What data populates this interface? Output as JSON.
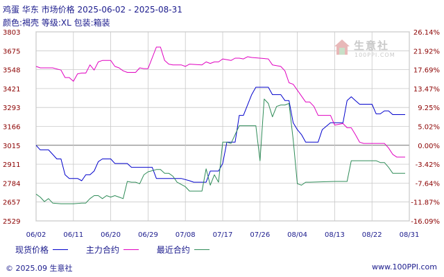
{
  "title": {
    "line1": "鸡蛋 华东 市场价格 2025-06-02 - 2025-08-31",
    "line2": "颜色:褐壳 等级:XL 包装:箱装"
  },
  "watermark": {
    "cn": "生意社",
    "en": "100PPI.COM"
  },
  "footer": {
    "left": "© 2025.09 生意社",
    "right": "www.100PPI.com"
  },
  "colors": {
    "spot": "#0000cc",
    "main": "#e000c0",
    "recent": "#2e8b57",
    "grid": "#c8c8c8",
    "zero": "#707070",
    "tick_text": "#8b0000"
  },
  "chart_data": {
    "type": "line",
    "title": "鸡蛋 华东 市场价格 2025-06-02 - 2025-08-31",
    "ylim": [
      2529,
      3803
    ],
    "y_ticks": [
      "3803",
      "3675",
      "3548",
      "3421",
      "3293",
      "3166",
      "3015",
      "2911",
      "2784",
      "2657",
      "2529"
    ],
    "y2_ticks": [
      "26.14%",
      "21.92%",
      "17.69%",
      "13.47%",
      "9.25%",
      "5.02%",
      "0.00%",
      "-3.42%",
      "-7.64%",
      "-11.87%",
      "-16.09%"
    ],
    "x_ticks": [
      "06/02",
      "06/11",
      "06/20",
      "06/29",
      "07/08",
      "07/17",
      "07/26",
      "08/04",
      "08/13",
      "08/22",
      "08/31"
    ],
    "grid": true,
    "legend_position": "bottom",
    "series": [
      {
        "name": "现货价格",
        "color": "#0000cc",
        "points": [
          [
            "06/02",
            3015
          ],
          [
            "06/03",
            2990
          ],
          [
            "06/05",
            2990
          ],
          [
            "06/06",
            2965
          ],
          [
            "06/07",
            2940
          ],
          [
            "06/08",
            2940
          ],
          [
            "06/09",
            2840
          ],
          [
            "06/10",
            2815
          ],
          [
            "06/12",
            2815
          ],
          [
            "06/13",
            2800
          ],
          [
            "06/14",
            2840
          ],
          [
            "06/15",
            2840
          ],
          [
            "06/16",
            2865
          ],
          [
            "06/17",
            2925
          ],
          [
            "06/18",
            2940
          ],
          [
            "06/20",
            2940
          ],
          [
            "06/21",
            2915
          ],
          [
            "06/24",
            2915
          ],
          [
            "06/25",
            2890
          ],
          [
            "06/30",
            2890
          ],
          [
            "07/01",
            2815
          ],
          [
            "07/07",
            2815
          ],
          [
            "07/09",
            2800
          ],
          [
            "07/10",
            2790
          ],
          [
            "07/13",
            2790
          ],
          [
            "07/14",
            2865
          ],
          [
            "07/16",
            2865
          ],
          [
            "07/17",
            2915
          ],
          [
            "07/18",
            3040
          ],
          [
            "07/20",
            3040
          ],
          [
            "07/21",
            3240
          ],
          [
            "07/22",
            3240
          ],
          [
            "07/24",
            3380
          ],
          [
            "07/25",
            3430
          ],
          [
            "07/28",
            3430
          ],
          [
            "07/29",
            3380
          ],
          [
            "07/31",
            3380
          ],
          [
            "08/01",
            3340
          ],
          [
            "08/02",
            3340
          ],
          [
            "08/03",
            3190
          ],
          [
            "08/04",
            3140
          ],
          [
            "08/05",
            3100
          ],
          [
            "08/06",
            3040
          ],
          [
            "08/07",
            3040
          ],
          [
            "08/09",
            3040
          ],
          [
            "08/10",
            3140
          ],
          [
            "08/12",
            3190
          ],
          [
            "08/13",
            3190
          ],
          [
            "08/15",
            3190
          ],
          [
            "08/16",
            3340
          ],
          [
            "08/17",
            3365
          ],
          [
            "08/18",
            3340
          ],
          [
            "08/19",
            3315
          ],
          [
            "08/22",
            3315
          ],
          [
            "08/23",
            3250
          ],
          [
            "08/24",
            3250
          ],
          [
            "08/25",
            3270
          ],
          [
            "08/26",
            3270
          ],
          [
            "08/27",
            3245
          ],
          [
            "08/30",
            3245
          ]
        ]
      },
      {
        "name": "主力合约",
        "color": "#e000c0",
        "points": [
          [
            "06/02",
            3570
          ],
          [
            "06/03",
            3560
          ],
          [
            "06/06",
            3560
          ],
          [
            "06/08",
            3545
          ],
          [
            "06/09",
            3495
          ],
          [
            "06/10",
            3495
          ],
          [
            "06/11",
            3470
          ],
          [
            "06/12",
            3520
          ],
          [
            "06/13",
            3525
          ],
          [
            "06/14",
            3525
          ],
          [
            "06/15",
            3580
          ],
          [
            "06/16",
            3545
          ],
          [
            "06/17",
            3600
          ],
          [
            "06/18",
            3610
          ],
          [
            "06/19",
            3610
          ],
          [
            "06/20",
            3610
          ],
          [
            "06/21",
            3570
          ],
          [
            "06/22",
            3560
          ],
          [
            "06/23",
            3540
          ],
          [
            "06/24",
            3530
          ],
          [
            "06/26",
            3530
          ],
          [
            "06/27",
            3560
          ],
          [
            "06/28",
            3555
          ],
          [
            "06/29",
            3555
          ],
          [
            "07/01",
            3700
          ],
          [
            "07/02",
            3700
          ],
          [
            "07/03",
            3610
          ],
          [
            "07/04",
            3585
          ],
          [
            "07/05",
            3580
          ],
          [
            "07/07",
            3580
          ],
          [
            "07/08",
            3570
          ],
          [
            "07/09",
            3585
          ],
          [
            "07/12",
            3580
          ],
          [
            "07/13",
            3600
          ],
          [
            "07/14",
            3590
          ],
          [
            "07/15",
            3600
          ],
          [
            "07/16",
            3600
          ],
          [
            "07/17",
            3620
          ],
          [
            "07/19",
            3610
          ],
          [
            "07/20",
            3625
          ],
          [
            "07/21",
            3625
          ],
          [
            "07/22",
            3620
          ],
          [
            "07/23",
            3635
          ],
          [
            "07/24",
            3630
          ],
          [
            "07/28",
            3620
          ],
          [
            "07/29",
            3580
          ],
          [
            "07/31",
            3570
          ],
          [
            "08/01",
            3540
          ],
          [
            "08/02",
            3460
          ],
          [
            "08/03",
            3450
          ],
          [
            "08/04",
            3410
          ],
          [
            "08/06",
            3330
          ],
          [
            "08/07",
            3330
          ],
          [
            "08/08",
            3300
          ],
          [
            "08/09",
            3240
          ],
          [
            "08/12",
            3240
          ],
          [
            "08/13",
            3175
          ],
          [
            "08/15",
            3185
          ],
          [
            "08/16",
            3155
          ],
          [
            "08/17",
            3155
          ],
          [
            "08/18",
            3100
          ],
          [
            "08/19",
            3040
          ],
          [
            "08/20",
            3030
          ],
          [
            "08/25",
            3030
          ],
          [
            "08/26",
            3000
          ],
          [
            "08/27",
            2965
          ],
          [
            "08/28",
            2950
          ],
          [
            "08/30",
            2950
          ]
        ]
      },
      {
        "name": "最近合约",
        "color": "#2e8b57",
        "points": [
          [
            "06/02",
            2710
          ],
          [
            "06/03",
            2690
          ],
          [
            "06/04",
            2660
          ],
          [
            "06/05",
            2680
          ],
          [
            "06/06",
            2650
          ],
          [
            "06/08",
            2645
          ],
          [
            "06/11",
            2645
          ],
          [
            "06/13",
            2650
          ],
          [
            "06/14",
            2650
          ],
          [
            "06/15",
            2680
          ],
          [
            "06/16",
            2700
          ],
          [
            "06/17",
            2700
          ],
          [
            "06/18",
            2680
          ],
          [
            "06/19",
            2700
          ],
          [
            "06/20",
            2690
          ],
          [
            "06/21",
            2700
          ],
          [
            "06/22",
            2690
          ],
          [
            "06/23",
            2680
          ],
          [
            "06/24",
            2795
          ],
          [
            "06/25",
            2790
          ],
          [
            "06/26",
            2790
          ],
          [
            "06/27",
            2780
          ],
          [
            "06/28",
            2840
          ],
          [
            "06/29",
            2860
          ],
          [
            "07/01",
            2875
          ],
          [
            "07/02",
            2875
          ],
          [
            "07/03",
            2850
          ],
          [
            "07/04",
            2850
          ],
          [
            "07/05",
            2830
          ],
          [
            "07/06",
            2790
          ],
          [
            "07/07",
            2775
          ],
          [
            "07/08",
            2760
          ],
          [
            "07/09",
            2730
          ],
          [
            "07/12",
            2730
          ],
          [
            "07/13",
            2880
          ],
          [
            "07/14",
            2770
          ],
          [
            "07/15",
            2840
          ],
          [
            "07/16",
            2790
          ],
          [
            "07/17",
            3040
          ],
          [
            "07/18",
            3040
          ],
          [
            "07/19",
            3030
          ],
          [
            "07/21",
            3170
          ],
          [
            "07/22",
            3170
          ],
          [
            "07/25",
            3170
          ],
          [
            "07/26",
            2930
          ],
          [
            "07/27",
            3350
          ],
          [
            "07/28",
            3320
          ],
          [
            "07/29",
            3230
          ],
          [
            "07/30",
            3300
          ],
          [
            "07/31",
            3310
          ],
          [
            "08/01",
            3310
          ],
          [
            "08/02",
            3320
          ],
          [
            "08/03",
            3060
          ],
          [
            "08/04",
            2780
          ],
          [
            "08/05",
            2770
          ],
          [
            "08/06",
            2790
          ],
          [
            "08/07",
            2790
          ],
          [
            "08/13",
            2795
          ],
          [
            "08/16",
            2795
          ],
          [
            "08/17",
            2930
          ],
          [
            "08/18",
            2930
          ],
          [
            "08/23",
            2930
          ],
          [
            "08/24",
            2920
          ],
          [
            "08/25",
            2920
          ],
          [
            "08/26",
            2890
          ],
          [
            "08/27",
            2850
          ],
          [
            "08/28",
            2850
          ],
          [
            "08/30",
            2850
          ]
        ]
      }
    ]
  }
}
